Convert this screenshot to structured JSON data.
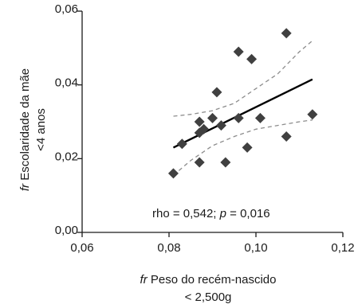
{
  "chart_data": {
    "type": "scatter",
    "xlabel_prefix": "fr",
    "xlabel_line1": "Peso do recém-nascido",
    "xlabel_line2": "< 2,500g",
    "ylabel_prefix": "fr",
    "ylabel_line1": "Escolaridade da mãe",
    "ylabel_line2": "<4 anos",
    "xlim": [
      0.06,
      0.12
    ],
    "ylim": [
      0.0,
      0.06
    ],
    "x_ticks": [
      0.06,
      0.08,
      0.1,
      0.12
    ],
    "x_tick_labels": [
      "0,06",
      "0,08",
      "0,10",
      "0,12"
    ],
    "y_ticks": [
      0.0,
      0.02,
      0.04,
      0.06
    ],
    "y_tick_labels": [
      "0,00",
      "0,02",
      "0,04",
      "0,06"
    ],
    "annotation": {
      "prefix": "rho = 0,542; ",
      "p_symbol": "p",
      "suffix": " = 0,016"
    },
    "points": [
      {
        "x": 0.081,
        "y": 0.016
      },
      {
        "x": 0.083,
        "y": 0.024
      },
      {
        "x": 0.087,
        "y": 0.019
      },
      {
        "x": 0.087,
        "y": 0.027
      },
      {
        "x": 0.087,
        "y": 0.03
      },
      {
        "x": 0.088,
        "y": 0.028
      },
      {
        "x": 0.09,
        "y": 0.031
      },
      {
        "x": 0.091,
        "y": 0.038
      },
      {
        "x": 0.092,
        "y": 0.029
      },
      {
        "x": 0.093,
        "y": 0.019
      },
      {
        "x": 0.096,
        "y": 0.031
      },
      {
        "x": 0.096,
        "y": 0.049
      },
      {
        "x": 0.098,
        "y": 0.023
      },
      {
        "x": 0.099,
        "y": 0.047
      },
      {
        "x": 0.101,
        "y": 0.031
      },
      {
        "x": 0.107,
        "y": 0.054
      },
      {
        "x": 0.107,
        "y": 0.026
      },
      {
        "x": 0.113,
        "y": 0.032
      }
    ],
    "regression_line": {
      "x": [
        0.081,
        0.113
      ],
      "y": [
        0.023,
        0.0415
      ]
    },
    "ci_upper": {
      "x": [
        0.081,
        0.085,
        0.09,
        0.095,
        0.1,
        0.105,
        0.11,
        0.113
      ],
      "y": [
        0.0315,
        0.032,
        0.033,
        0.035,
        0.039,
        0.043,
        0.049,
        0.052
      ]
    },
    "ci_lower": {
      "x": [
        0.081,
        0.085,
        0.09,
        0.095,
        0.1,
        0.105,
        0.11,
        0.113
      ],
      "y": [
        0.0155,
        0.0195,
        0.0235,
        0.026,
        0.028,
        0.029,
        0.03,
        0.0305
      ]
    },
    "colors": {
      "points": "#404040",
      "line": "#000000",
      "ci": "#8c8c8c",
      "axis": "#1a1a1a"
    },
    "grid": false
  }
}
